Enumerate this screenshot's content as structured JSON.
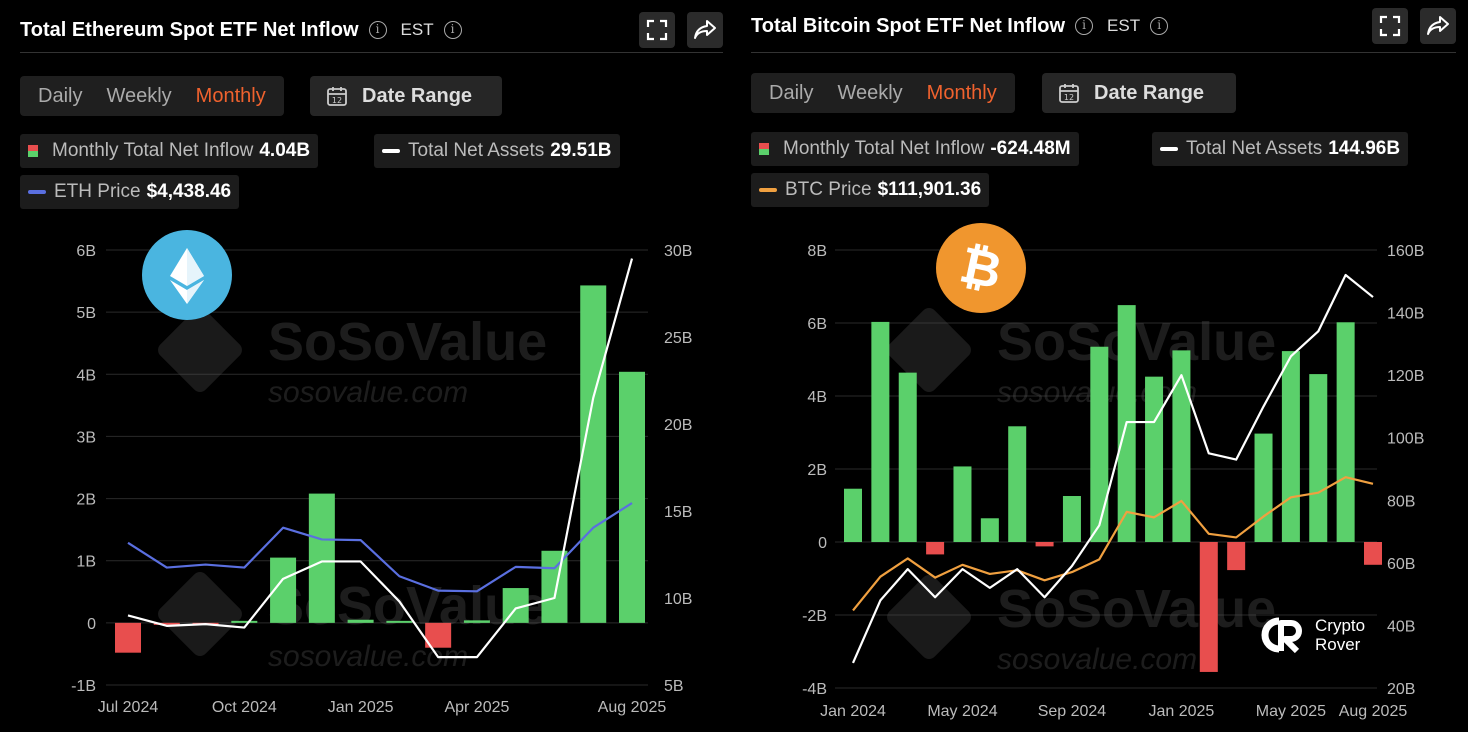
{
  "eth": {
    "title": "Total Ethereum Spot ETF Net Inflow",
    "tz": "EST",
    "tabs": [
      "Daily",
      "Weekly",
      "Monthly"
    ],
    "active_tab": "Monthly",
    "date_range_label": "Date Range",
    "legend": {
      "inflow_label": "Monthly Total Net Inflow",
      "inflow_value": "4.04B",
      "assets_label": "Total Net Assets",
      "assets_value": "29.51B",
      "price_label": "ETH Price",
      "price_value": "$4,438.46",
      "price_color": "#5a6fe0"
    },
    "logo_icon": "ethereum-icon",
    "logo_color": "#4ab5e0"
  },
  "btc": {
    "title": "Total Bitcoin Spot ETF Net Inflow",
    "tz": "EST",
    "tabs": [
      "Daily",
      "Weekly",
      "Monthly"
    ],
    "active_tab": "Monthly",
    "date_range_label": "Date Range",
    "legend": {
      "inflow_label": "Monthly Total Net Inflow",
      "inflow_value": "-624.48M",
      "assets_label": "Total Net Assets",
      "assets_value": "144.96B",
      "price_label": "BTC Price",
      "price_value": "$111,901.36",
      "price_color": "#f0a040"
    },
    "logo_icon": "bitcoin-icon",
    "logo_color": "#f0962e"
  },
  "watermark": {
    "brand": "SoSoValue",
    "url": "sosovalue.com"
  },
  "crypto_rover": {
    "line1": "Crypto",
    "line2": "Rover"
  },
  "colors": {
    "positive": "#5bd06b",
    "negative": "#e84e4e",
    "assets_line": "#ffffff",
    "accent": "#f0622e"
  },
  "chart_data": [
    {
      "type": "bar",
      "title": "Total Ethereum Spot ETF Net Inflow",
      "categories": [
        "Jul 2024",
        "Aug 2024",
        "Sep 2024",
        "Oct 2024",
        "Nov 2024",
        "Dec 2024",
        "Jan 2025",
        "Feb 2025",
        "Mar 2025",
        "Apr 2025",
        "May 2025",
        "Jun 2025",
        "Jul 2025",
        "Aug 2025"
      ],
      "x_tick_labels": [
        "Jul 2024",
        "Oct 2024",
        "Jan 2025",
        "Apr 2025",
        "Aug 2025"
      ],
      "x_tick_indices": [
        0,
        3,
        6,
        9,
        13
      ],
      "series": [
        {
          "name": "Monthly Total Net Inflow",
          "kind": "bar",
          "axis": "left",
          "unit": "B",
          "values": [
            -0.48,
            -0.01,
            -0.02,
            0.01,
            1.05,
            2.08,
            0.05,
            0.03,
            -0.4,
            0.04,
            0.56,
            1.16,
            5.43,
            4.04
          ]
        },
        {
          "name": "Total Net Assets",
          "kind": "line",
          "axis": "right",
          "unit": "B",
          "values": [
            9.0,
            8.4,
            8.5,
            8.3,
            11.1,
            12.1,
            12.1,
            9.8,
            6.6,
            6.6,
            9.4,
            10.0,
            21.5,
            29.51
          ]
        },
        {
          "name": "ETH Price",
          "kind": "line",
          "axis": "price",
          "values": [
            3250,
            2510,
            2600,
            2510,
            3700,
            3350,
            3330,
            2250,
            1820,
            1800,
            2530,
            2490,
            3700,
            4438.46
          ]
        }
      ],
      "y_left": {
        "ticks": [
          "6B",
          "5B",
          "4B",
          "3B",
          "2B",
          "1B",
          "0",
          "-1B"
        ],
        "range": [
          -1,
          6
        ]
      },
      "y_right": {
        "ticks": [
          "30B",
          "25B",
          "20B",
          "15B",
          "10B",
          "5B"
        ],
        "range": [
          5,
          30
        ]
      },
      "y_price_range": [
        -1000,
        12000
      ],
      "grid": true
    },
    {
      "type": "bar",
      "title": "Total Bitcoin Spot ETF Net Inflow",
      "categories": [
        "Jan 2024",
        "Feb 2024",
        "Mar 2024",
        "Apr 2024",
        "May 2024",
        "Jun 2024",
        "Jul 2024",
        "Aug 2024",
        "Sep 2024",
        "Oct 2024",
        "Nov 2024",
        "Dec 2024",
        "Jan 2025",
        "Feb 2025",
        "Mar 2025",
        "Apr 2025",
        "May 2025",
        "Jun 2025",
        "Jul 2025",
        "Aug 2025"
      ],
      "x_tick_labels": [
        "Jan 2024",
        "May 2024",
        "Sep 2024",
        "Jan 2025",
        "May 2025",
        "Aug 2025"
      ],
      "x_tick_indices": [
        0,
        4,
        8,
        12,
        16,
        19
      ],
      "series": [
        {
          "name": "Monthly Total Net Inflow",
          "kind": "bar",
          "axis": "left",
          "unit": "B",
          "values": [
            1.46,
            6.03,
            4.64,
            -0.34,
            2.07,
            0.65,
            3.17,
            -0.12,
            1.26,
            5.35,
            6.49,
            4.53,
            5.25,
            -3.56,
            -0.77,
            2.97,
            5.23,
            4.6,
            6.02,
            -0.62448
          ]
        },
        {
          "name": "Total Net Assets",
          "kind": "line",
          "axis": "right",
          "unit": "B",
          "values": [
            28,
            48,
            58,
            49,
            58,
            52,
            58,
            49,
            59,
            72,
            105,
            105,
            120,
            95,
            93,
            110,
            126,
            134,
            152,
            144.96
          ]
        },
        {
          "name": "BTC Price",
          "kind": "line",
          "axis": "price",
          "values": [
            42500,
            61000,
            71000,
            60500,
            67500,
            62500,
            64500,
            59000,
            63500,
            70500,
            96500,
            93500,
            102500,
            84500,
            82500,
            94000,
            104500,
            107000,
            115500,
            111901.36
          ]
        }
      ],
      "y_left": {
        "ticks": [
          "8B",
          "6B",
          "4B",
          "2B",
          "0",
          "-2B",
          "-4B"
        ],
        "range": [
          -4,
          8
        ]
      },
      "y_right": {
        "ticks": [
          "160B",
          "140B",
          "120B",
          "100B",
          "80B",
          "60B",
          "40B",
          "20B"
        ],
        "range": [
          20,
          160
        ]
      },
      "y_price_range": [
        0,
        240000
      ],
      "grid": true
    }
  ]
}
